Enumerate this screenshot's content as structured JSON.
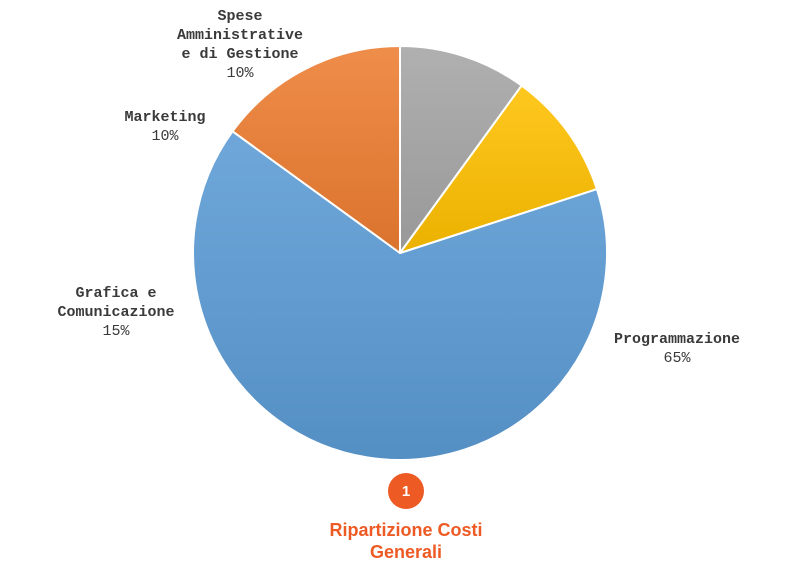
{
  "chart_data": {
    "type": "pie",
    "title": "Ripartizione Costi\nGenerali",
    "slices": [
      {
        "label": "Programmazione",
        "value": 65,
        "value_label": "65%",
        "color": "#5b9bd5"
      },
      {
        "label": "Grafica e\nComunicazione",
        "value": 15,
        "value_label": "15%",
        "color": "#ed7d31"
      },
      {
        "label": "Marketing",
        "value": 10,
        "value_label": "10%",
        "color": "#a5a5a5"
      },
      {
        "label": "Spese\nAmministrative\ne di Gestione",
        "value": 10,
        "value_label": "10%",
        "color": "#ffc000"
      }
    ]
  },
  "badge": {
    "number": "1",
    "color": "#ee5a24"
  },
  "title_color": "#ee5a24"
}
